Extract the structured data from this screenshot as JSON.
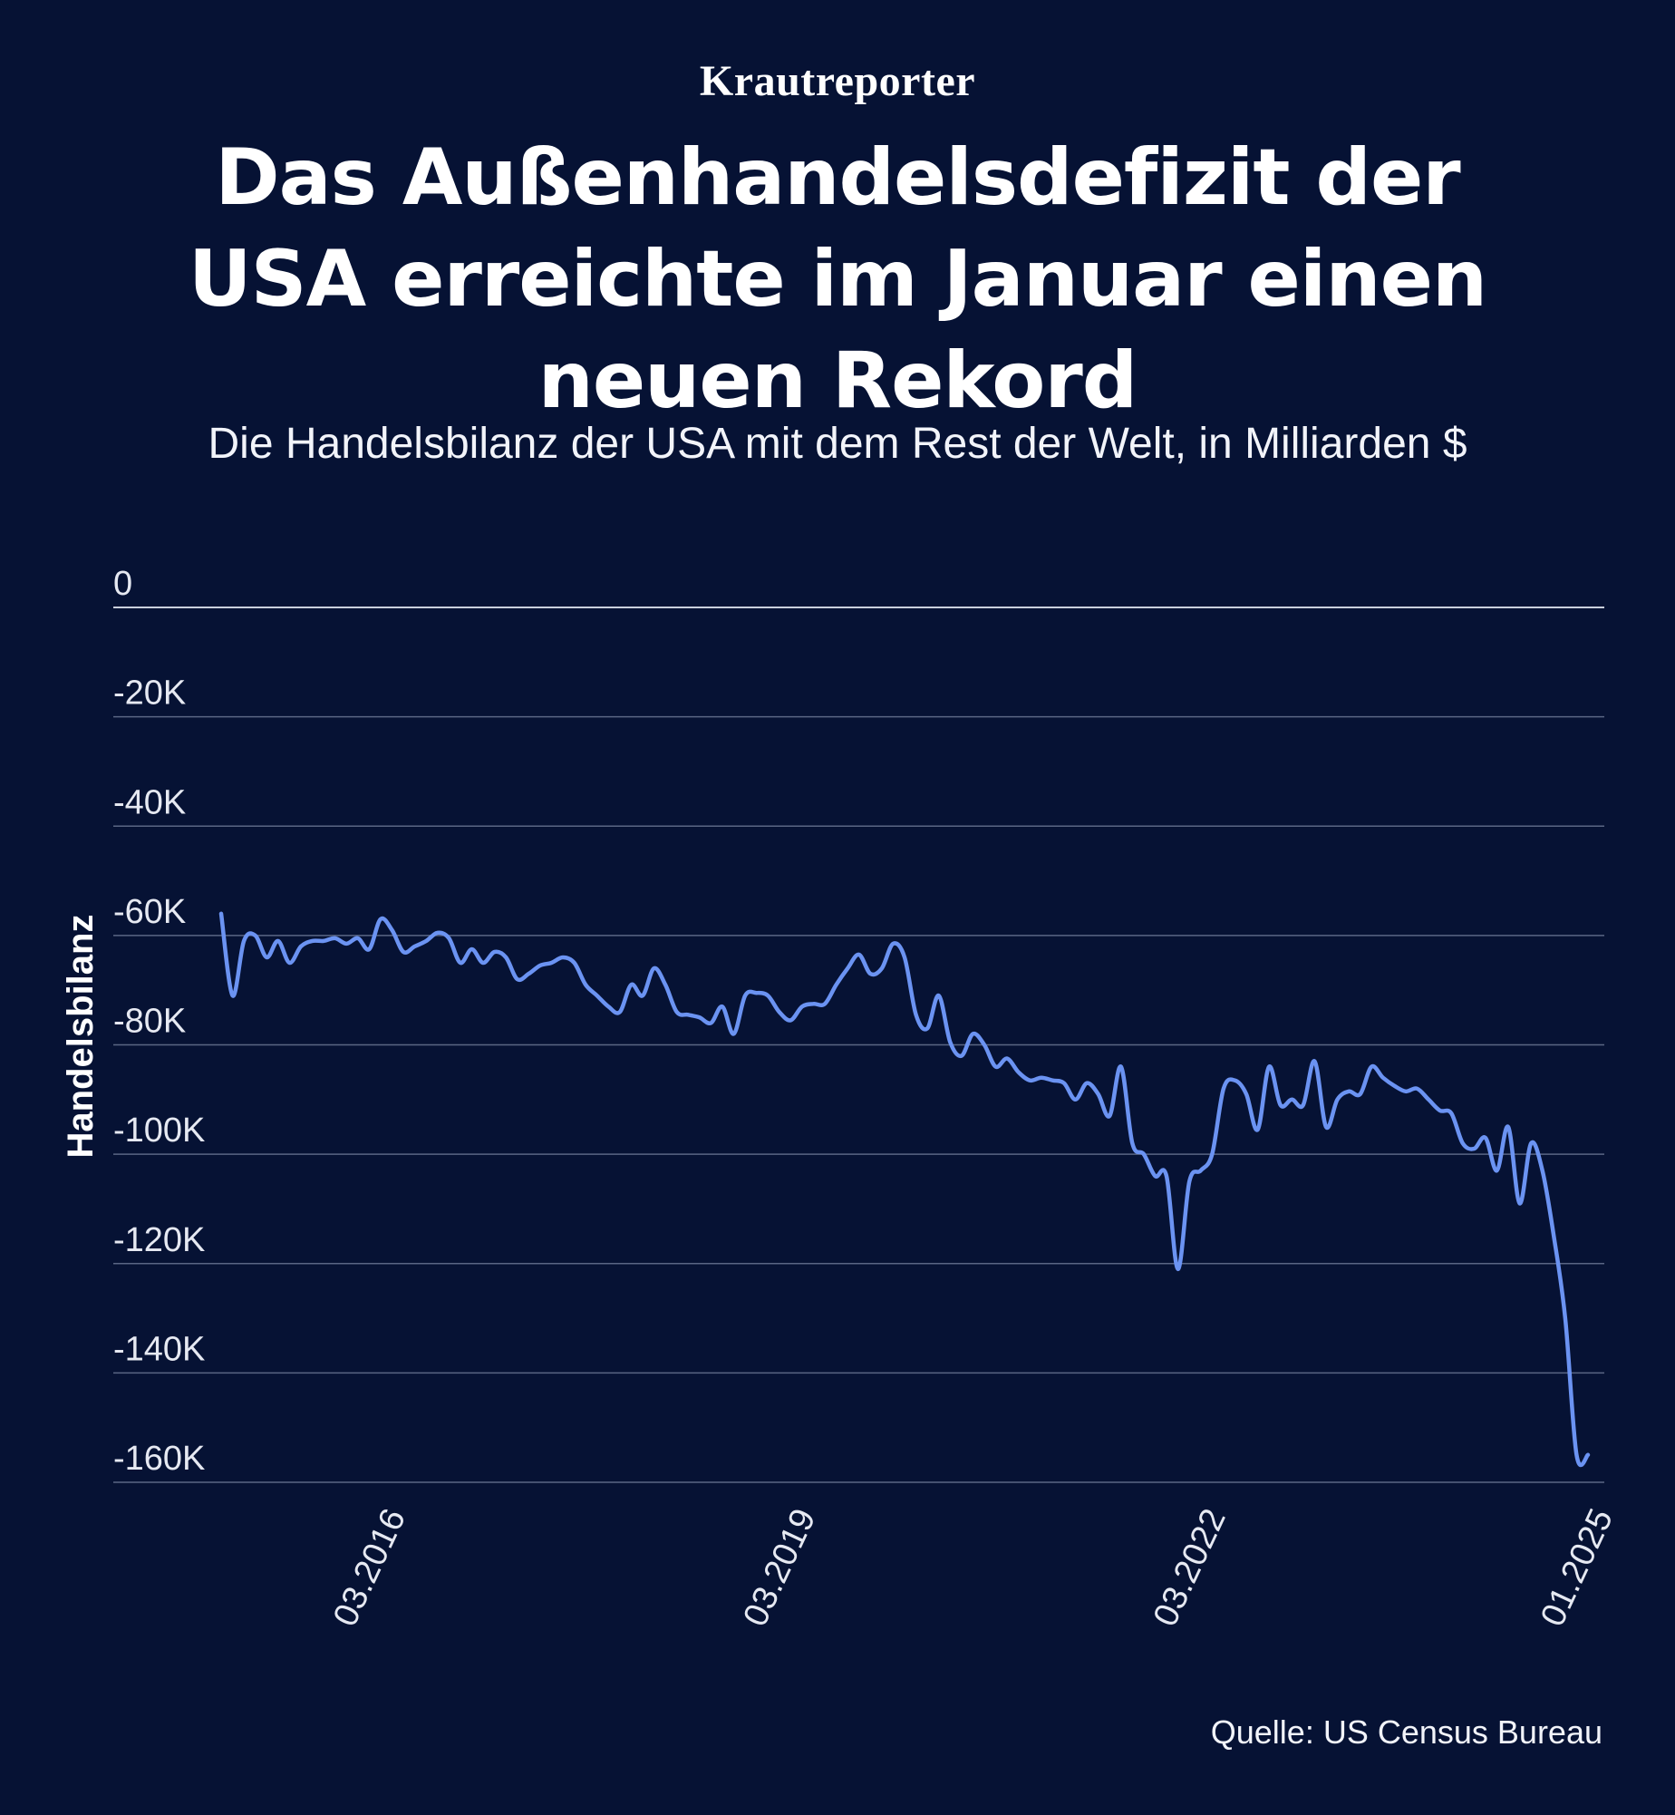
{
  "brand": "Krautreporter",
  "title": "Das Außenhandelsdefizit der USA erreichte im Januar einen neuen Rekord",
  "subtitle": "Die Handelsbilanz der USA mit dem Rest der Welt, in Milliarden $",
  "source": "Quelle: US Census Bureau",
  "colors": {
    "background": "#061234",
    "line": "#6b93f2",
    "grid": "#5a6684",
    "text": "#ffffff"
  },
  "chart_data": {
    "type": "line",
    "ylabel": "Handelsbilanz",
    "ylim": [
      -160000,
      0
    ],
    "yticks": [
      0,
      -20000,
      -40000,
      -60000,
      -80000,
      -100000,
      -120000,
      -140000,
      -160000
    ],
    "ytick_labels": [
      "0",
      "-20K",
      "-40K",
      "-60K",
      "-80K",
      "-100K",
      "-120K",
      "-140K",
      "-160K"
    ],
    "xlim": [
      "2015-01",
      "2025-01"
    ],
    "xticks": [
      "2016-03",
      "2019-03",
      "2022-03",
      "2025-01"
    ],
    "xtick_labels": [
      "03.2016",
      "03.2019",
      "03.2022",
      "01.2025"
    ],
    "grid": true,
    "series": [
      {
        "name": "",
        "x": [
          "2015-01",
          "2015-02",
          "2015-03",
          "2015-04",
          "2015-05",
          "2015-06",
          "2015-07",
          "2015-08",
          "2015-09",
          "2015-10",
          "2015-11",
          "2015-12",
          "2016-01",
          "2016-02",
          "2016-03",
          "2016-04",
          "2016-05",
          "2016-06",
          "2016-07",
          "2016-08",
          "2016-09",
          "2016-10",
          "2016-11",
          "2016-12",
          "2017-01",
          "2017-02",
          "2017-03",
          "2017-04",
          "2017-05",
          "2017-06",
          "2017-07",
          "2017-08",
          "2017-09",
          "2017-10",
          "2017-11",
          "2017-12",
          "2018-01",
          "2018-02",
          "2018-03",
          "2018-04",
          "2018-05",
          "2018-06",
          "2018-07",
          "2018-08",
          "2018-09",
          "2018-10",
          "2018-11",
          "2018-12",
          "2019-01",
          "2019-02",
          "2019-03",
          "2019-04",
          "2019-05",
          "2019-06",
          "2019-07",
          "2019-08",
          "2019-09",
          "2019-10",
          "2019-11",
          "2019-12",
          "2020-01",
          "2020-02",
          "2020-03",
          "2020-04",
          "2020-05",
          "2020-06",
          "2020-07",
          "2020-08",
          "2020-09",
          "2020-10",
          "2020-11",
          "2020-12",
          "2021-01",
          "2021-02",
          "2021-03",
          "2021-04",
          "2021-05",
          "2021-06",
          "2021-07",
          "2021-08",
          "2021-09",
          "2021-10",
          "2021-11",
          "2021-12",
          "2022-01",
          "2022-02",
          "2022-03",
          "2022-04",
          "2022-05",
          "2022-06",
          "2022-07",
          "2022-08",
          "2022-09",
          "2022-10",
          "2022-11",
          "2022-12",
          "2023-01",
          "2023-02",
          "2023-03",
          "2023-04",
          "2023-05",
          "2023-06",
          "2023-07",
          "2023-08",
          "2023-09",
          "2023-10",
          "2023-11",
          "2023-12",
          "2024-01",
          "2024-02",
          "2024-03",
          "2024-04",
          "2024-05",
          "2024-06",
          "2024-07",
          "2024-08",
          "2024-09",
          "2024-10",
          "2024-11",
          "2024-12",
          "2025-01"
        ],
        "values": [
          -56000,
          -71000,
          -61000,
          -60000,
          -64000,
          -61000,
          -65000,
          -62000,
          -61000,
          -61000,
          -60500,
          -61500,
          -60500,
          -62500,
          -57000,
          -59000,
          -63000,
          -62000,
          -61000,
          -59500,
          -60500,
          -65000,
          -62500,
          -65000,
          -63000,
          -64000,
          -68000,
          -67000,
          -65500,
          -65000,
          -64000,
          -65000,
          -69000,
          -71000,
          -73000,
          -74000,
          -69000,
          -71000,
          -66000,
          -69000,
          -74000,
          -74500,
          -75000,
          -76000,
          -73000,
          -78000,
          -71000,
          -70500,
          -71000,
          -74000,
          -75500,
          -73000,
          -72500,
          -72500,
          -69000,
          -66000,
          -63500,
          -67000,
          -66000,
          -61500,
          -64000,
          -74500,
          -77000,
          -71000,
          -79500,
          -82000,
          -78000,
          -80000,
          -84000,
          -82500,
          -85000,
          -86500,
          -86000,
          -86500,
          -87000,
          -90000,
          -87000,
          -89000,
          -93000,
          -84000,
          -98000,
          -100000,
          -104000,
          -104000,
          -121000,
          -105000,
          -103000,
          -100000,
          -88000,
          -86500,
          -89000,
          -95500,
          -84000,
          -91000,
          -90000,
          -91000,
          -83000,
          -95000,
          -90000,
          -88500,
          -89000,
          -84000,
          -86000,
          -87500,
          -88500,
          -88000,
          -90000,
          -92000,
          -92500,
          -98000,
          -99000,
          -97000,
          -103000,
          -95000,
          -109000,
          -98000,
          -103000,
          -115000,
          -130000,
          -155000,
          -155000
        ]
      }
    ]
  }
}
